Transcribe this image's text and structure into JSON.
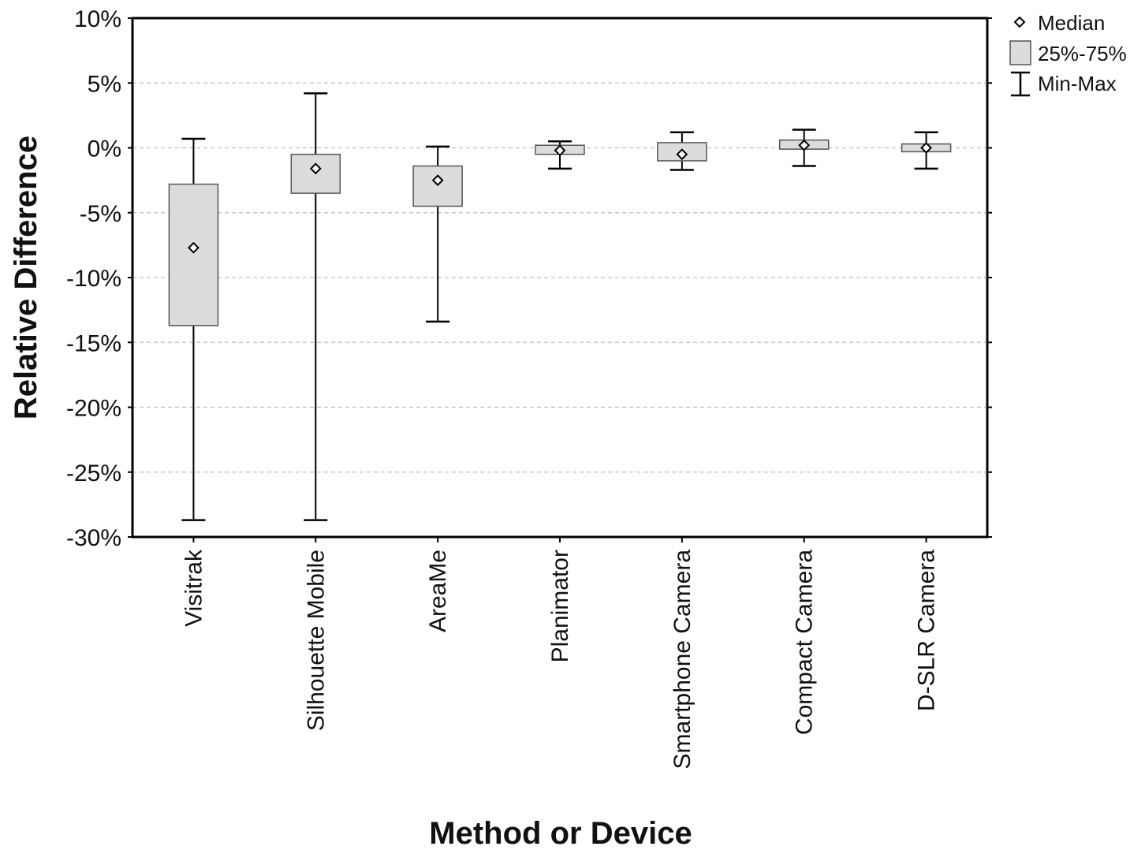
{
  "chart_data": {
    "type": "box",
    "ylabel": "Relative Difference",
    "xlabel": "Method or Device",
    "ylim": [
      -30,
      10
    ],
    "yticks": [
      10,
      5,
      0,
      -5,
      -10,
      -15,
      -20,
      -25,
      -30
    ],
    "ytick_labels": [
      "10%",
      "5%",
      "0%",
      "-5%",
      "-10%",
      "-15%",
      "-20%",
      "-25%",
      "-30%"
    ],
    "grid": "horizontal dashed",
    "legend_position": "top-right",
    "legend": {
      "median": "Median",
      "box": "25%-75%",
      "whisker": "Min-Max"
    },
    "categories": [
      "Visitrak",
      "Silhouette Mobile",
      "AreaMe",
      "Planimator",
      "Smartphone Camera",
      "Compact Camera",
      "D-SLR Camera"
    ],
    "series": [
      {
        "min": -28.7,
        "q1": -13.7,
        "median": -7.7,
        "q3": -2.8,
        "max": 0.7
      },
      {
        "min": -28.7,
        "q1": -3.5,
        "median": -1.6,
        "q3": -0.5,
        "max": 4.2
      },
      {
        "min": -13.4,
        "q1": -4.5,
        "median": -2.5,
        "q3": -1.4,
        "max": 0.1
      },
      {
        "min": -1.6,
        "q1": -0.5,
        "median": -0.2,
        "q3": 0.2,
        "max": 0.5
      },
      {
        "min": -1.7,
        "q1": -1.0,
        "median": -0.5,
        "q3": 0.4,
        "max": 1.2
      },
      {
        "min": -1.4,
        "q1": -0.1,
        "median": 0.2,
        "q3": 0.6,
        "max": 1.4
      },
      {
        "min": -1.6,
        "q1": -0.3,
        "median": 0.0,
        "q3": 0.3,
        "max": 1.2
      }
    ],
    "colors": {
      "box_fill": "#dcdcdc",
      "box_stroke": "#555555",
      "axis": "#000000",
      "grid": "#bfbfbf"
    }
  }
}
